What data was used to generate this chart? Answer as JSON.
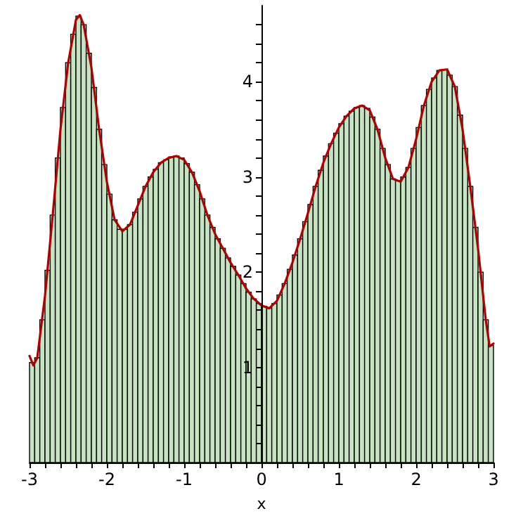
{
  "chart_data": {
    "type": "histogram",
    "xlabel": "x",
    "xlim": [
      -3,
      3
    ],
    "ylim": [
      0,
      4.8
    ],
    "xticks": [
      -3,
      {
        "value": -2.8,
        "label": null
      },
      {
        "value": -2.6,
        "label": null
      },
      {
        "value": -2.4,
        "label": null
      },
      {
        "value": -2.2,
        "label": null
      },
      -2,
      {
        "value": -1.8,
        "label": null
      },
      {
        "value": -1.6,
        "label": null
      },
      {
        "value": -1.4,
        "label": null
      },
      {
        "value": -1.2,
        "label": null
      },
      -1,
      {
        "value": -0.8,
        "label": null
      },
      {
        "value": -0.6,
        "label": null
      },
      {
        "value": -0.4,
        "label": null
      },
      {
        "value": -0.2,
        "label": null
      },
      0,
      {
        "value": 0.2,
        "label": null
      },
      {
        "value": 0.4,
        "label": null
      },
      {
        "value": 0.6,
        "label": null
      },
      {
        "value": 0.8,
        "label": null
      },
      1,
      {
        "value": 1.2,
        "label": null
      },
      {
        "value": 1.4,
        "label": null
      },
      {
        "value": 1.6,
        "label": null
      },
      {
        "value": 1.8,
        "label": null
      },
      2,
      {
        "value": 2.2,
        "label": null
      },
      {
        "value": 2.4,
        "label": null
      },
      {
        "value": 2.6,
        "label": null
      },
      {
        "value": 2.8,
        "label": null
      },
      3
    ],
    "yticks": [
      {
        "value": 0.2,
        "label": null
      },
      {
        "value": 0.4,
        "label": null
      },
      {
        "value": 0.6,
        "label": null
      },
      {
        "value": 0.8,
        "label": null
      },
      1,
      {
        "value": 1.2,
        "label": null
      },
      {
        "value": 1.4,
        "label": null
      },
      {
        "value": 1.6,
        "label": null
      },
      {
        "value": 1.8,
        "label": null
      },
      2,
      {
        "value": 2.2,
        "label": null
      },
      {
        "value": 2.4,
        "label": null
      },
      {
        "value": 2.6,
        "label": null
      },
      {
        "value": 2.8,
        "label": null
      },
      3,
      {
        "value": 3.2,
        "label": null
      },
      {
        "value": 3.4,
        "label": null
      },
      {
        "value": 3.6,
        "label": null
      },
      {
        "value": 3.8,
        "label": null
      },
      4,
      {
        "value": 4.2,
        "label": null
      },
      {
        "value": 4.4,
        "label": null
      },
      {
        "value": 4.6,
        "label": null
      }
    ],
    "series": [
      {
        "color": "#c6e4bf",
        "bins": [
          -3,
          -2.933,
          -2.867,
          -2.8,
          -2.733,
          -2.667,
          -2.6,
          -2.533,
          -2.467,
          -2.4,
          -2.333,
          -2.267,
          -2.2,
          -2.133,
          -2.067,
          -2,
          -1.933,
          -1.867,
          -1.8,
          -1.733,
          -1.667,
          -1.6,
          -1.533,
          -1.467,
          -1.4,
          -1.333,
          -1.267,
          -1.2,
          -1.133,
          -1.067,
          -1,
          -0.933,
          -0.867,
          -0.8,
          -0.733,
          -0.667,
          -0.6,
          -0.533,
          -0.467,
          -0.4,
          -0.333,
          -0.267,
          -0.2,
          -0.133,
          -0.067,
          0,
          0.067,
          0.133,
          0.2,
          0.267,
          0.333,
          0.4,
          0.467,
          0.533,
          0.6,
          0.667,
          0.733,
          0.8,
          0.867,
          0.933,
          1,
          1.067,
          1.133,
          1.2,
          1.267,
          1.333,
          1.4,
          1.467,
          1.533,
          1.6,
          1.667,
          1.733,
          1.8,
          1.867,
          1.933,
          2,
          2.067,
          2.133,
          2.2,
          2.267,
          2.333,
          2.4,
          2.467,
          2.533,
          2.6,
          2.667,
          2.733,
          2.8,
          2.867,
          2.933,
          3
        ],
        "values": [
          1.05,
          1.1,
          1.5,
          2.02,
          2.6,
          3.2,
          3.73,
          4.2,
          4.5,
          4.69,
          4.6,
          4.3,
          3.94,
          3.5,
          3.13,
          2.82,
          2.55,
          2.45,
          2.45,
          2.5,
          2.63,
          2.77,
          2.9,
          3.0,
          3.08,
          3.15,
          3.18,
          3.21,
          3.22,
          3.2,
          3.14,
          3.05,
          2.92,
          2.77,
          2.6,
          2.47,
          2.35,
          2.25,
          2.15,
          2.06,
          1.97,
          1.88,
          1.79,
          1.72,
          1.67,
          1.64,
          1.62,
          1.67,
          1.76,
          1.88,
          2.03,
          2.18,
          2.35,
          2.53,
          2.71,
          2.9,
          3.07,
          3.22,
          3.35,
          3.46,
          3.56,
          3.64,
          3.69,
          3.73,
          3.75,
          3.72,
          3.63,
          3.5,
          3.3,
          3.13,
          2.98,
          2.96,
          3.0,
          3.1,
          3.3,
          3.52,
          3.75,
          3.92,
          4.04,
          4.12,
          4.13,
          4.07,
          3.95,
          3.65,
          3.3,
          2.9,
          2.47,
          2.0,
          1.5,
          1.23
        ]
      },
      {
        "type": "line",
        "color": "#b00000",
        "line_style": "solid",
        "marker": "none",
        "x": [
          -3,
          -2.95,
          -2.9,
          -2.8,
          -2.7,
          -2.6,
          -2.5,
          -2.4,
          -2.35,
          -2.3,
          -2.2,
          -2.1,
          -2,
          -1.9,
          -1.8,
          -1.7,
          -1.6,
          -1.5,
          -1.4,
          -1.3,
          -1.2,
          -1.1,
          -1,
          -0.9,
          -0.8,
          -0.7,
          -0.6,
          -0.5,
          -0.4,
          -0.3,
          -0.2,
          -0.1,
          0,
          0.1,
          0.2,
          0.3,
          0.4,
          0.5,
          0.6,
          0.7,
          0.8,
          0.9,
          1,
          1.1,
          1.2,
          1.3,
          1.4,
          1.5,
          1.6,
          1.7,
          1.8,
          1.9,
          2,
          2.1,
          2.2,
          2.3,
          2.4,
          2.5,
          2.6,
          2.7,
          2.8,
          2.9,
          2.95,
          3
        ],
        "values": [
          1.12,
          1.02,
          1.1,
          1.75,
          2.6,
          3.5,
          4.2,
          4.65,
          4.7,
          4.6,
          4.15,
          3.5,
          2.95,
          2.55,
          2.43,
          2.5,
          2.7,
          2.9,
          3.05,
          3.15,
          3.2,
          3.22,
          3.18,
          3.05,
          2.85,
          2.6,
          2.4,
          2.25,
          2.1,
          1.97,
          1.83,
          1.72,
          1.65,
          1.62,
          1.7,
          1.88,
          2.1,
          2.35,
          2.62,
          2.9,
          3.15,
          3.35,
          3.52,
          3.64,
          3.72,
          3.75,
          3.7,
          3.5,
          3.2,
          2.98,
          2.95,
          3.1,
          3.4,
          3.75,
          4.0,
          4.12,
          4.13,
          3.95,
          3.5,
          2.9,
          2.25,
          1.5,
          1.22,
          1.25
        ]
      }
    ]
  }
}
